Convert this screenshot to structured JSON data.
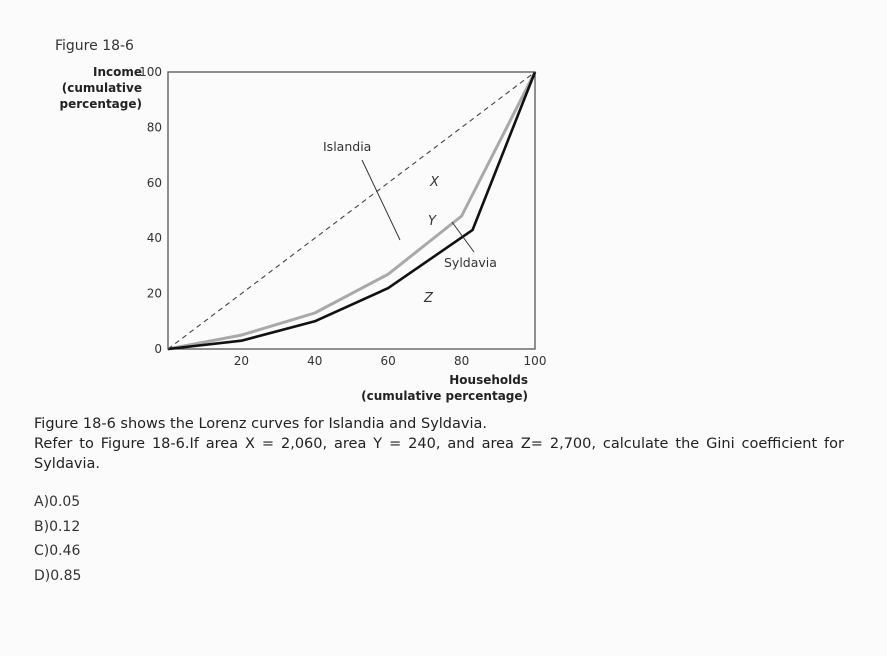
{
  "figure_label": "Figure 18-6",
  "chart_data": {
    "type": "line",
    "title": "Figure 18-6",
    "ylabel_lines": [
      "Income",
      "(cumulative",
      "percentage)"
    ],
    "xlabel_lines": [
      "Households",
      "(cumulative percentage)"
    ],
    "xlim": [
      0,
      100
    ],
    "ylim": [
      0,
      100
    ],
    "x_ticks": [
      "20",
      "40",
      "60",
      "80",
      "100"
    ],
    "y_ticks": [
      "0",
      "20",
      "40",
      "60",
      "80",
      "100"
    ],
    "series": [
      {
        "name": "Islandia",
        "color": "#a9a9a9",
        "style": "solid",
        "x": [
          0,
          20,
          40,
          60,
          80,
          100
        ],
        "y": [
          0,
          5,
          13,
          27,
          48,
          100
        ]
      },
      {
        "name": "Syldavia",
        "color": "#111111",
        "style": "solid",
        "x": [
          0,
          20,
          40,
          60,
          83,
          100
        ],
        "y": [
          0,
          3,
          10,
          22,
          43,
          100
        ]
      },
      {
        "name": "",
        "color": "#444444",
        "style": "dashed",
        "x": [
          0,
          100
        ],
        "y": [
          0,
          100
        ]
      }
    ],
    "area_labels": [
      "X",
      "Y",
      "Z"
    ],
    "callouts": [
      "Islandia",
      "Syldavia"
    ]
  },
  "question": {
    "intro": "Figure 18-6 shows the Lorenz curves for Islandia and Syldavia.",
    "stem": "Refer to Figure 18-6.If area X = 2,060, area Y = 240, and area Z= 2,700, calculate the Gini coefficient for Syldavia.",
    "choices": [
      "A)0.05",
      "B)0.12",
      "C)0.46",
      "D)0.85"
    ]
  }
}
